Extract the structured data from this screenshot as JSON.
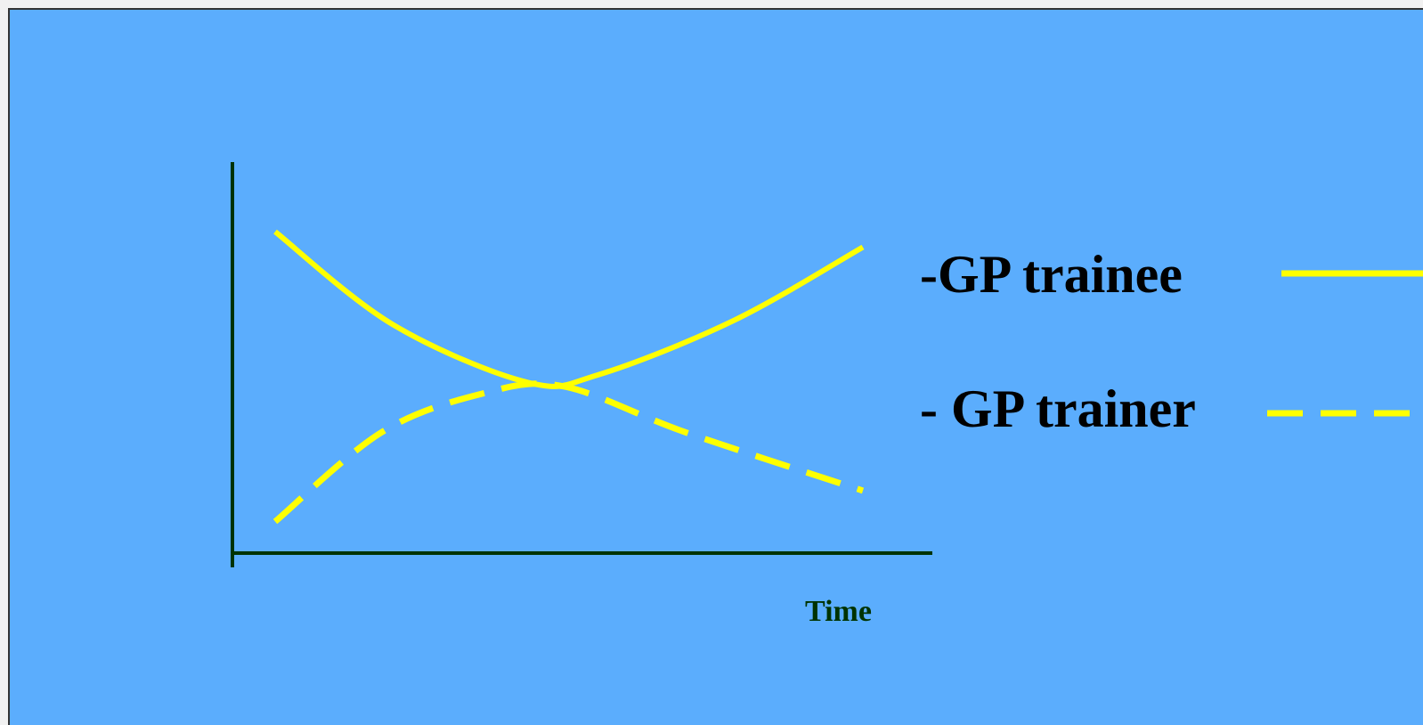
{
  "chart_data": {
    "type": "line",
    "title": "",
    "xlabel": "Time",
    "ylabel": "",
    "grid": false,
    "legend_position": "right",
    "series": [
      {
        "name": "-GP trainee",
        "style": "solid",
        "color": "#ffff00",
        "points": [
          [
            0.0,
            0.82
          ],
          [
            0.2,
            0.58
          ],
          [
            0.43,
            0.43
          ],
          [
            0.55,
            0.45
          ],
          [
            0.78,
            0.59
          ],
          [
            1.0,
            0.78
          ]
        ]
      },
      {
        "name": "- GP trainer",
        "style": "dashed",
        "color": "#ffff00",
        "points": [
          [
            0.0,
            0.07
          ],
          [
            0.18,
            0.3
          ],
          [
            0.35,
            0.4
          ],
          [
            0.49,
            0.42
          ],
          [
            0.7,
            0.3
          ],
          [
            1.0,
            0.15
          ]
        ]
      }
    ],
    "xlim": [
      0,
      1
    ],
    "ylim": [
      0,
      1
    ]
  },
  "colors": {
    "background": "#5badfd",
    "axis": "#003300",
    "line": "#ffff00",
    "label": "#000000",
    "xlabel": "#003300"
  }
}
